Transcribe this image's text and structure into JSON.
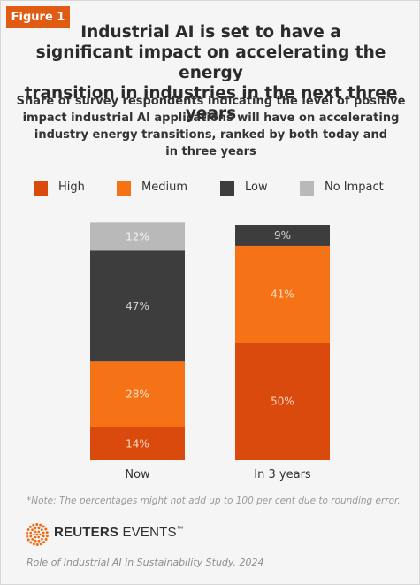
{
  "figure_label": "Figure 1",
  "title_lines": [
    "Industrial AI is set to have a",
    "significant impact on accelerating the energy",
    "transition in industries in the next three years"
  ],
  "subtitle_lines": [
    "Share of survey respondents indicating the level of positive",
    "impact industrial AI applications will have on accelerating",
    "industry energy transitions, ranked by both today and",
    "in three years"
  ],
  "legend": [
    {
      "label": "High",
      "color": "#d94a0c"
    },
    {
      "label": "Medium",
      "color": "#f57316"
    },
    {
      "label": "Low",
      "color": "#3d3d3d"
    },
    {
      "label": "No Impact",
      "color": "#b9b9b9"
    }
  ],
  "note": "*Note: The percentages might not add up to 100 per cent due to rounding error.",
  "brand": {
    "bold": "REUTERS",
    "light": "EVENTS",
    "mark": "™",
    "color": "#f26a10"
  },
  "source": "Role of Industrial AI in Sustainability Study, 2024",
  "chart_data": {
    "type": "bar",
    "stacked": true,
    "categories": [
      "Now",
      "In 3 years"
    ],
    "series": [
      {
        "name": "High",
        "color": "#d94a0c",
        "label_color": "#fbd6c2",
        "values": [
          14,
          50
        ],
        "labels": [
          "14%",
          "50%"
        ]
      },
      {
        "name": "Medium",
        "color": "#f57316",
        "label_color": "#fde0c8",
        "values": [
          28,
          41
        ],
        "labels": [
          "28%",
          "41%"
        ]
      },
      {
        "name": "Low",
        "color": "#3d3d3d",
        "label_color": "#d2d2d2",
        "values": [
          47,
          9
        ],
        "labels": [
          "47%",
          "9%"
        ]
      },
      {
        "name": "No Impact",
        "color": "#b9b9b9",
        "label_color": "#f3f3f3",
        "values": [
          12,
          0
        ],
        "labels": [
          "12%",
          ""
        ]
      }
    ],
    "ylim": [
      0,
      100
    ],
    "grid": false,
    "legend_position": "top"
  }
}
